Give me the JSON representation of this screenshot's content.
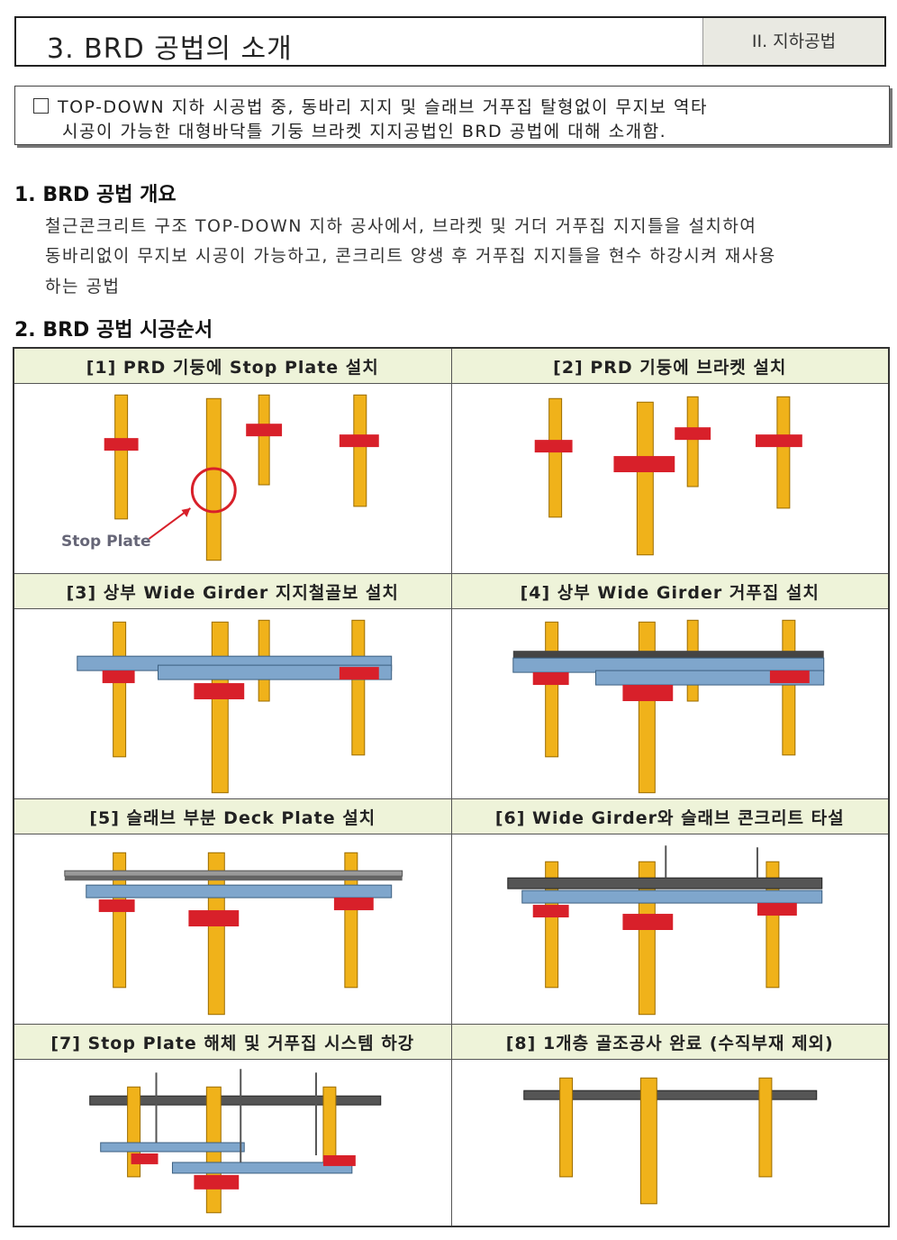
{
  "header": {
    "title": "3. BRD 공법의 소개",
    "tag": "II. 지하공법"
  },
  "summary": {
    "line1": "TOP-DOWN 지하 시공법 중, 동바리 지지 및 슬래브 거푸집 탈형없이 무지보 역타",
    "line2": "시공이 가능한 대형바닥틀 기둥 브라켓 지지공법인 BRD 공법에 대해 소개함."
  },
  "section1": {
    "heading": "1. BRD 공법 개요",
    "lines": [
      "철근콘크리트 구조 TOP-DOWN 지하 공사에서, 브라켓 및 거더 거푸집 지지틀을 설치하여",
      "동바리없이 무지보 시공이 가능하고, 콘크리트 양생 후 거푸집 지지틀을 현수 하강시켜 재사용",
      "하는 공법"
    ]
  },
  "section2": {
    "heading": "2. BRD 공법 시공순서",
    "steps": [
      {
        "label": "[1] PRD 기둥에 Stop Plate 설치",
        "callout": "Stop Plate"
      },
      {
        "label": "[2] PRD 기둥에 브라켓 설치"
      },
      {
        "label": "[3] 상부 Wide Girder 지지철골보 설치"
      },
      {
        "label": "[4] 상부 Wide Girder 거푸집 설치"
      },
      {
        "label": "[5] 슬래브 부분 Deck Plate 설치"
      },
      {
        "label": "[6] Wide Girder와 슬래브 콘크리트 타설"
      },
      {
        "label": "[7] Stop Plate 해체 및 거푸집 시스템 하강"
      },
      {
        "label": "[8] 1개층 골조공사 완료 (수직부재 제외)"
      }
    ]
  },
  "colors": {
    "column": "#f0b21a",
    "bracket": "#d8202a",
    "girder": "#7fa6cc",
    "slab": "#555555",
    "header_fill": "#eef3d9"
  }
}
